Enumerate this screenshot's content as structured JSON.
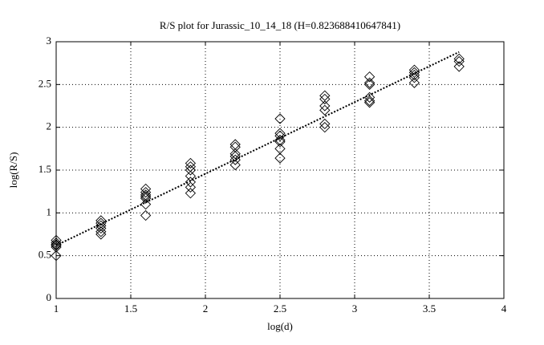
{
  "chart_data": {
    "type": "scatter",
    "title": "R/S plot for Jurassic_10_14_18 (H=0.823688410647841)",
    "xlabel": "log(d)",
    "ylabel": "log(R/S)",
    "xlim": [
      1,
      4
    ],
    "ylim": [
      0,
      3
    ],
    "xticks": [
      1,
      1.5,
      2,
      2.5,
      3,
      3.5,
      4
    ],
    "yticks": [
      0,
      0.5,
      1,
      1.5,
      2,
      2.5,
      3
    ],
    "grid": true,
    "series": [
      {
        "marker": "diamond",
        "color": "#000000",
        "x": [
          1,
          1,
          1,
          1,
          1,
          1,
          1.3,
          1.3,
          1.3,
          1.3,
          1.3,
          1.3,
          1.6,
          1.6,
          1.6,
          1.6,
          1.6,
          1.6,
          1.6,
          1.9,
          1.9,
          1.9,
          1.9,
          1.9,
          1.9,
          1.9,
          2.2,
          2.2,
          2.2,
          2.2,
          2.2,
          2.2,
          2.5,
          2.5,
          2.5,
          2.5,
          2.5,
          2.5,
          2.5,
          2.8,
          2.8,
          2.8,
          2.8,
          2.8,
          2.8,
          3.1,
          3.1,
          3.1,
          3.1,
          3.1,
          3.1,
          3.4,
          3.4,
          3.4,
          3.4,
          3.4,
          3.7,
          3.7,
          3.7
        ],
        "values": [
          0.68,
          0.65,
          0.63,
          0.62,
          0.6,
          0.5,
          0.91,
          0.88,
          0.85,
          0.82,
          0.78,
          0.75,
          1.28,
          1.24,
          1.21,
          1.19,
          1.17,
          1.1,
          0.97,
          1.58,
          1.54,
          1.5,
          1.43,
          1.36,
          1.3,
          1.23,
          1.8,
          1.77,
          1.69,
          1.66,
          1.62,
          1.56,
          2.1,
          1.93,
          1.9,
          1.85,
          1.83,
          1.75,
          1.64,
          2.37,
          2.33,
          2.25,
          2.2,
          2.04,
          2.0,
          2.59,
          2.52,
          2.5,
          2.35,
          2.31,
          2.29,
          2.67,
          2.64,
          2.61,
          2.58,
          2.52,
          2.8,
          2.77,
          2.71
        ]
      },
      {
        "marker": "none",
        "line": "dotted",
        "color": "#000000",
        "x": [
          1,
          3.7
        ],
        "values": [
          0.62,
          2.88
        ]
      }
    ]
  }
}
